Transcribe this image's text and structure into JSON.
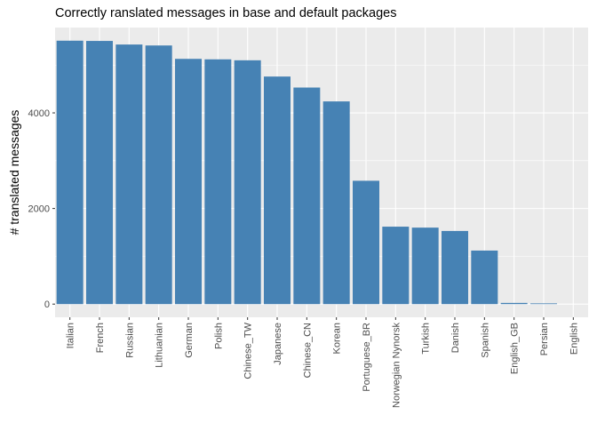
{
  "chart_data": {
    "type": "bar",
    "title": "Correctly ranslated messages in base and default packages",
    "xlabel": "",
    "ylabel": "# translated messages",
    "categories": [
      "Italian",
      "French",
      "Russian",
      "Lithuanian",
      "German",
      "Polish",
      "Chinese_TW",
      "Japanese",
      "Chinese_CN",
      "Korean",
      "Portuguese_BR",
      "Norwegian Nynorsk",
      "Turkish",
      "Danish",
      "Spanish",
      "English_GB",
      "Persian",
      "English"
    ],
    "values": [
      5510,
      5505,
      5430,
      5410,
      5130,
      5120,
      5100,
      4760,
      4530,
      4240,
      2580,
      1620,
      1600,
      1530,
      1120,
      25,
      15,
      0
    ],
    "ylim": [
      -275,
      5785
    ],
    "yticks": [
      0,
      2000,
      4000
    ],
    "grid": true,
    "legend": "none",
    "colors": {
      "bar": "#4682B4",
      "panel": "#EBEBEB",
      "gridline": "#FFFFFF",
      "axis_text": "#4D4D4D"
    }
  }
}
